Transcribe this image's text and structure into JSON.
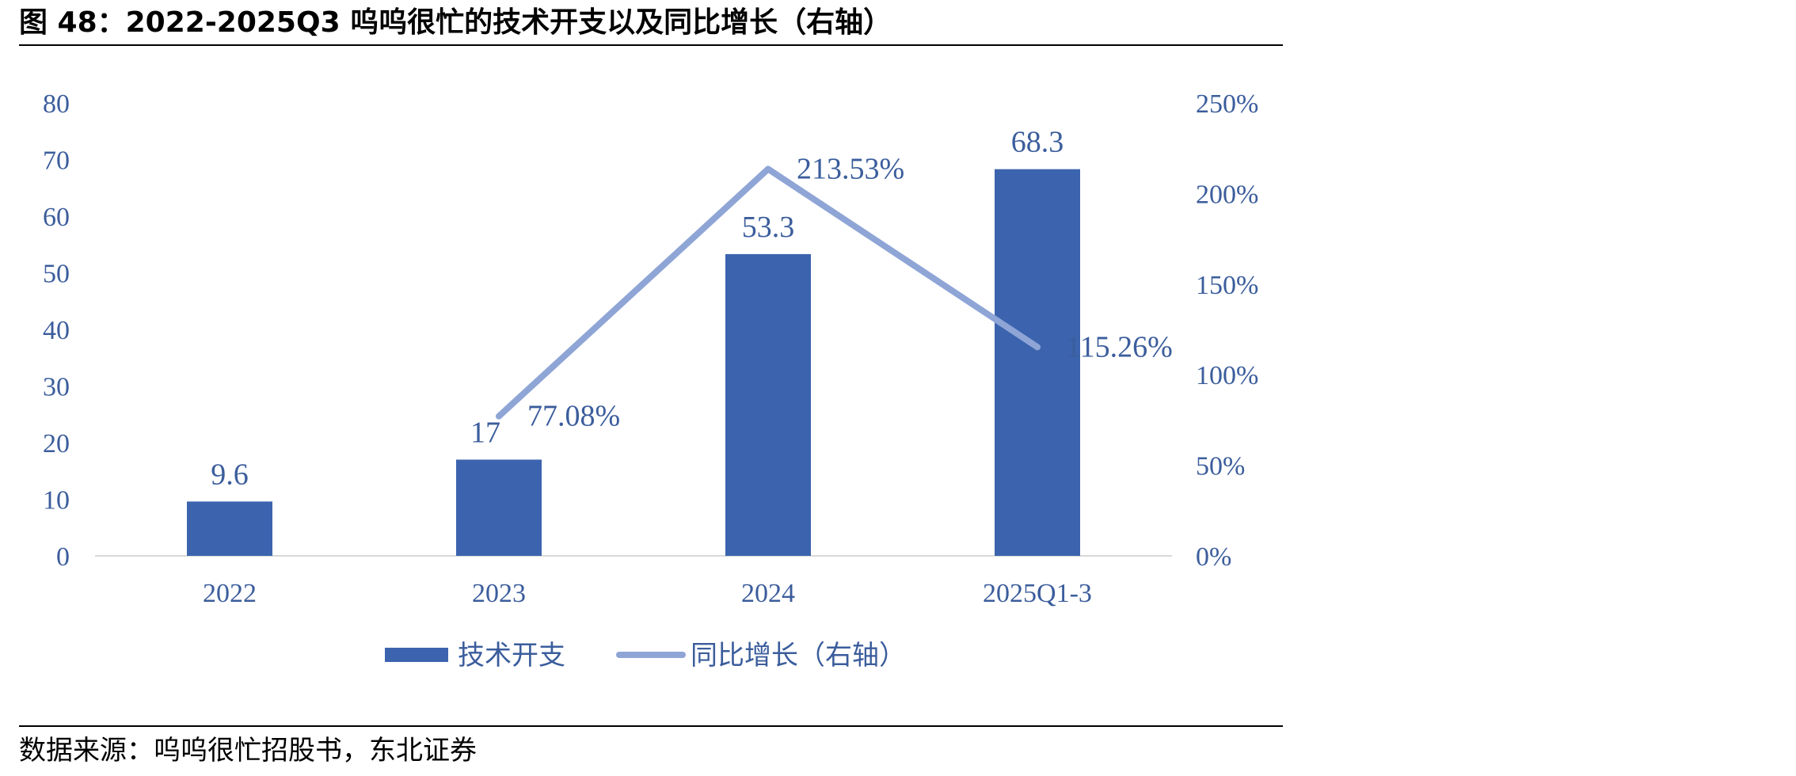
{
  "title": "图 48：2022-2025Q3 呜呜很忙的技术开支以及同比增长（右轴）",
  "source": "数据来源：呜呜很忙招股书，东北证券",
  "colors": {
    "bar": "#3C64AE",
    "line": "#8EA5D6",
    "text": "#3B5D9C"
  },
  "chart_data": {
    "type": "bar",
    "categories": [
      "2022",
      "2023",
      "2024",
      "2025Q1-3"
    ],
    "series": [
      {
        "name": "技术开支",
        "type": "bar",
        "axis": "left",
        "values": [
          9.6,
          17,
          53.3,
          68.3
        ],
        "labels": [
          "9.6",
          "17",
          "53.3",
          "68.3"
        ]
      },
      {
        "name": "同比增长（右轴）",
        "type": "line",
        "axis": "right",
        "values": [
          null,
          77.08,
          213.53,
          115.26
        ],
        "labels": [
          "",
          "77.08%",
          "213.53%",
          "115.26%"
        ]
      }
    ],
    "ylim": [
      0,
      80
    ],
    "yticks": [
      "0",
      "10",
      "20",
      "30",
      "40",
      "50",
      "60",
      "70",
      "80"
    ],
    "y2lim": [
      0,
      250
    ],
    "y2ticks": [
      "0%",
      "50%",
      "100%",
      "150%",
      "200%",
      "250%"
    ],
    "legend_position": "bottom",
    "grid": false
  }
}
